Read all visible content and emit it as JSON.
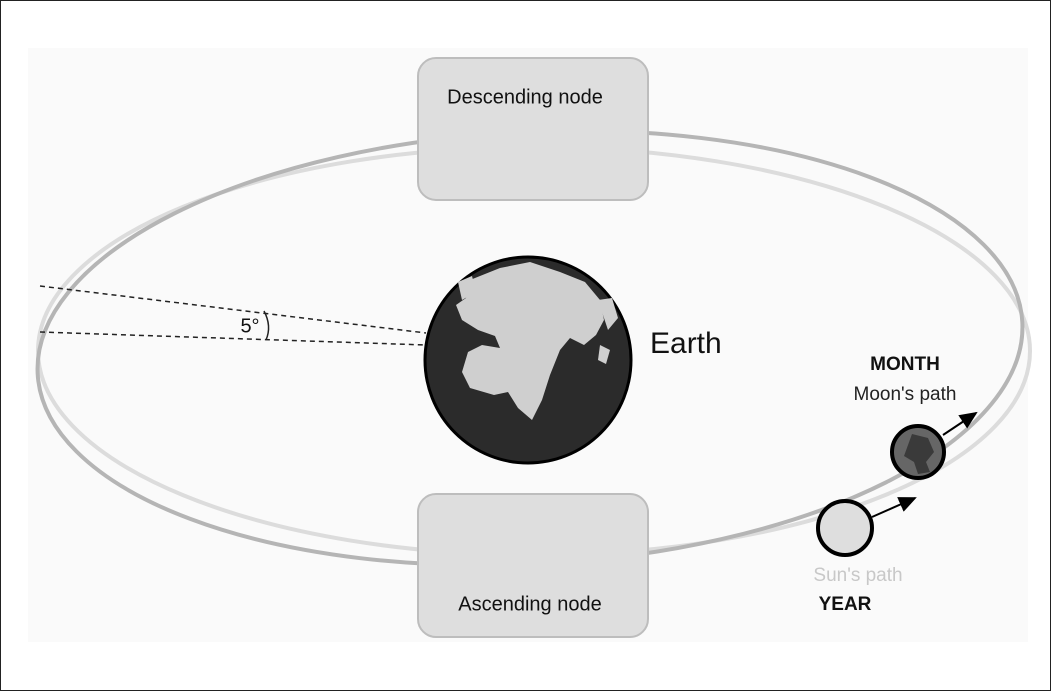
{
  "nodes": {
    "descending": {
      "label": "Descending node"
    },
    "ascending": {
      "label": "Ascending node"
    }
  },
  "earth": {
    "label": "Earth"
  },
  "angle": {
    "label": "5°"
  },
  "moon": {
    "period": "MONTH",
    "path": "Moon's path"
  },
  "sun": {
    "path": "Sun's path",
    "period": "YEAR"
  }
}
